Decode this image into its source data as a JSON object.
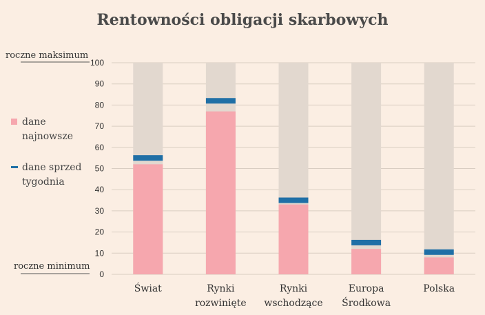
{
  "chart_data": {
    "type": "bar",
    "title": "Rentowności obligacji skarbowych",
    "categories": [
      [
        "Świat"
      ],
      [
        "Rynki",
        "rozwinięte"
      ],
      [
        "Rynki",
        "wschodzące"
      ],
      [
        "Europa",
        "Środkowa"
      ],
      [
        "Polska"
      ]
    ],
    "series": [
      {
        "name": "dane najnowsze",
        "values": [
          52,
          77,
          33,
          12,
          8
        ],
        "color": "#f6a7ae"
      },
      {
        "name": "dane sprzed tygodnia",
        "values": [
          55,
          82,
          35,
          15,
          10.5
        ],
        "color": "#1f6fa6"
      }
    ],
    "background_bar_color": "#e2d8cf",
    "ylim": [
      0,
      100
    ],
    "yticks": [
      0,
      10,
      20,
      30,
      40,
      50,
      60,
      70,
      80,
      90,
      100
    ],
    "grid": true,
    "range_labels": {
      "max": "roczne maksimum",
      "min": "roczne minimum"
    },
    "legend": {
      "position": "left",
      "items": [
        {
          "lines": [
            "dane",
            "najnowsze"
          ],
          "marker": "square",
          "color": "#f6a7ae"
        },
        {
          "lines": [
            "dane sprzed",
            "tygodnia"
          ],
          "marker": "dash",
          "color": "#1f6fa6"
        }
      ]
    }
  }
}
